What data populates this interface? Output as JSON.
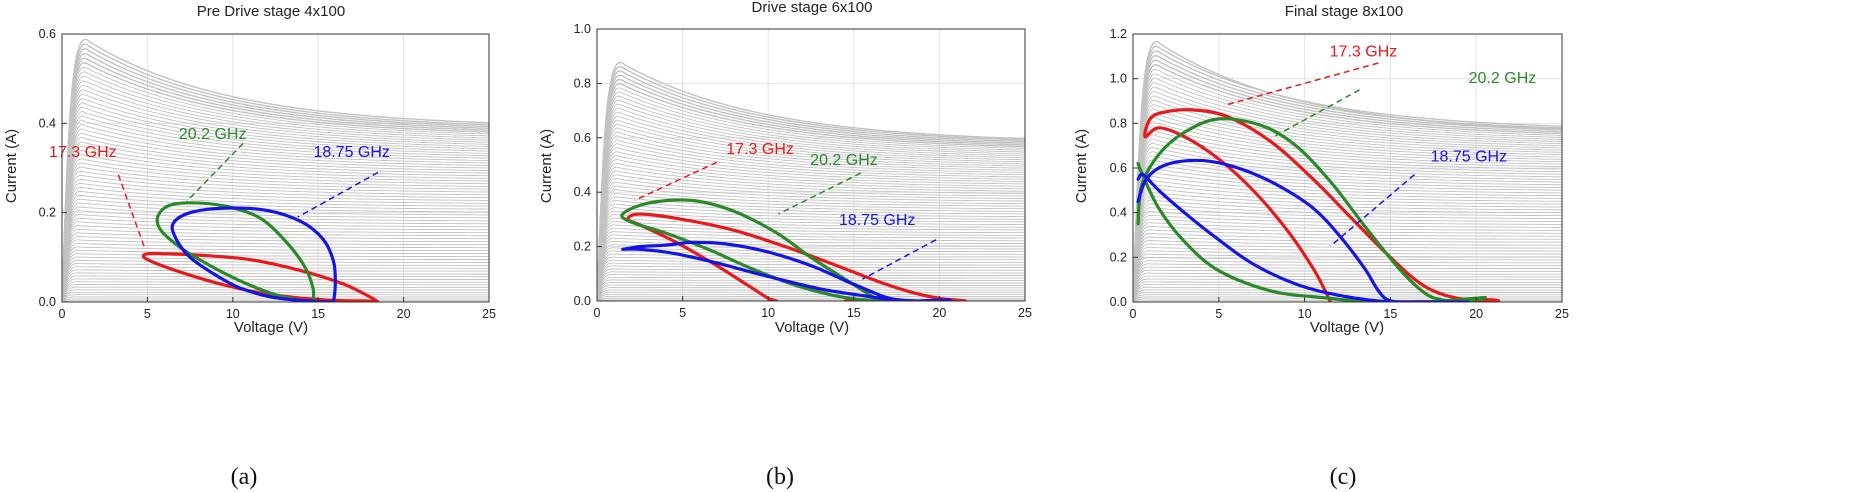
{
  "colors": {
    "grid": "#e3e3e3",
    "family": "#c2c2c2",
    "red": "#e8191c",
    "green": "#2a8a2a",
    "blue": "#1414e6",
    "axis": "#333333"
  },
  "chart_data": [
    {
      "type": "line",
      "title": "Pre Drive stage 4x100",
      "xlabel": "Voltage (V)",
      "ylabel": "Current (A)",
      "xlim": [
        0,
        25
      ],
      "ylim": [
        0,
        0.6
      ],
      "xticks": [
        "0",
        "5",
        "10",
        "15",
        "20",
        "25"
      ],
      "yticks": [
        "0.0",
        "0.2",
        "0.4",
        "0.6"
      ],
      "caption": "(a)",
      "family": {
        "peak_current": 0.59,
        "peak_voltage": 1.3,
        "end_current": 0.39,
        "curve_count": 70
      },
      "series": [
        {
          "name": "17.3 GHz",
          "color": "red",
          "x": [
            18.5,
            18.1,
            16.5,
            14.0,
            11.0,
            8.0,
            6.0,
            5.0,
            4.8,
            5.6,
            7.5,
            9.5,
            12.0,
            14.5,
            16.5,
            17.8,
            18.4,
            18.5
          ],
          "y": [
            0.0,
            0.01,
            0.04,
            0.07,
            0.095,
            0.105,
            0.108,
            0.108,
            0.1,
            0.085,
            0.06,
            0.038,
            0.018,
            0.007,
            0.003,
            0.002,
            0.001,
            0.0
          ]
        },
        {
          "name": "20.2 GHz",
          "color": "green",
          "x": [
            14.7,
            14.7,
            14.2,
            13.0,
            11.5,
            9.5,
            7.5,
            6.2,
            5.6,
            5.8,
            7.0,
            8.5,
            10.0,
            11.5,
            12.8,
            13.8,
            14.4,
            14.7
          ],
          "y": [
            0.0,
            0.03,
            0.08,
            0.14,
            0.19,
            0.215,
            0.222,
            0.215,
            0.19,
            0.16,
            0.12,
            0.085,
            0.055,
            0.03,
            0.013,
            0.005,
            0.001,
            0.0
          ]
        },
        {
          "name": "18.75 GHz",
          "color": "blue",
          "x": [
            15.9,
            16.0,
            15.9,
            15.3,
            14.0,
            12.0,
            9.5,
            7.5,
            6.5,
            6.7,
            7.5,
            8.8,
            10.2,
            11.8,
            13.2,
            14.6,
            15.5,
            15.9
          ],
          "y": [
            0.0,
            0.04,
            0.09,
            0.14,
            0.18,
            0.205,
            0.21,
            0.2,
            0.175,
            0.14,
            0.1,
            0.065,
            0.035,
            0.015,
            0.006,
            0.002,
            0.0,
            0.0
          ]
        }
      ],
      "annotations": [
        {
          "text": "17.3 GHz",
          "color": "red",
          "x": 3.2,
          "y": 0.325,
          "from": [
            3.3,
            0.285
          ],
          "to": [
            4.8,
            0.125
          ]
        },
        {
          "text": "20.2 GHz",
          "color": "green",
          "x": 10.8,
          "y": 0.365,
          "from": [
            10.6,
            0.355
          ],
          "to": [
            7.3,
            0.225
          ]
        },
        {
          "text": "18.75 GHz",
          "color": "blue",
          "x": 19.2,
          "y": 0.325,
          "from": [
            18.5,
            0.29
          ],
          "to": [
            13.8,
            0.19
          ]
        }
      ]
    },
    {
      "type": "line",
      "title": "Drive stage 6x100",
      "xlabel": "Voltage (V)",
      "ylabel": "Current (A)",
      "xlim": [
        0,
        25
      ],
      "ylim": [
        0,
        1.0
      ],
      "xticks": [
        "0",
        "5",
        "10",
        "15",
        "20",
        "25"
      ],
      "yticks": [
        "0.0",
        "0.2",
        "0.4",
        "0.6",
        "0.8",
        "1.0"
      ],
      "caption": "(b)",
      "family": {
        "peak_current": 0.88,
        "peak_voltage": 1.3,
        "end_current": 0.58,
        "curve_count": 70
      },
      "series": [
        {
          "name": "17.3 GHz",
          "color": "red",
          "x": [
            10.5,
            10.0,
            9.0,
            7.0,
            4.5,
            2.5,
            1.8,
            2.5,
            5.0,
            8.0,
            11.0,
            14.0,
            16.5,
            18.5,
            20.0,
            21.0,
            21.5,
            20.5,
            18.5,
            16.5,
            14.5
          ],
          "y": [
            0.0,
            0.01,
            0.05,
            0.13,
            0.22,
            0.28,
            0.3,
            0.32,
            0.3,
            0.26,
            0.2,
            0.13,
            0.07,
            0.03,
            0.01,
            0.003,
            0.0,
            0.0,
            0.0,
            0.0,
            0.0
          ]
        },
        {
          "name": "20.2 GHz",
          "color": "green",
          "x": [
            16.5,
            16.0,
            14.5,
            12.5,
            10.5,
            8.0,
            5.5,
            3.0,
            1.5,
            2.0,
            4.0,
            6.5,
            9.0,
            11.5,
            13.5,
            15.0,
            16.2,
            17.0,
            18.5,
            19.5
          ],
          "y": [
            0.0,
            0.02,
            0.08,
            0.16,
            0.25,
            0.33,
            0.37,
            0.36,
            0.32,
            0.29,
            0.25,
            0.19,
            0.12,
            0.06,
            0.025,
            0.008,
            0.002,
            0.0,
            0.0,
            0.0
          ]
        },
        {
          "name": "18.75 GHz",
          "color": "blue",
          "x": [
            1.5,
            2.5,
            4.0,
            5.5,
            7.5,
            10.0,
            12.5,
            14.5,
            16.0,
            16.8,
            17.5,
            18.5,
            19.5,
            20.3,
            20.6,
            19.8,
            18.0,
            15.5,
            13.0,
            10.0,
            7.0,
            4.5,
            2.5,
            1.5
          ],
          "y": [
            0.19,
            0.2,
            0.205,
            0.215,
            0.21,
            0.18,
            0.13,
            0.075,
            0.035,
            0.015,
            0.005,
            0.0,
            0.0,
            0.002,
            0.004,
            0.003,
            0.0,
            0.02,
            0.045,
            0.09,
            0.14,
            0.175,
            0.19,
            0.19
          ]
        }
      ],
      "annotations": [
        {
          "text": "17.3 GHz",
          "color": "red",
          "x": 11.5,
          "y": 0.54,
          "from": [
            7.0,
            0.51
          ],
          "to": [
            2.2,
            0.37
          ]
        },
        {
          "text": "20.2 GHz",
          "color": "green",
          "x": 16.4,
          "y": 0.5,
          "from": [
            15.4,
            0.47
          ],
          "to": [
            10.6,
            0.32
          ]
        },
        {
          "text": "18.75 GHz",
          "color": "blue",
          "x": 18.6,
          "y": 0.28,
          "from": [
            19.8,
            0.225
          ],
          "to": [
            15.5,
            0.08
          ]
        }
      ]
    },
    {
      "type": "line",
      "title": "Final stage 8x100",
      "xlabel": "Voltage (V)",
      "ylabel": "Current (A)",
      "xlim": [
        0,
        25
      ],
      "ylim": [
        0,
        1.2
      ],
      "xticks": [
        "0",
        "5",
        "10",
        "15",
        "20",
        "25"
      ],
      "yticks": [
        "0.0",
        "0.2",
        "0.4",
        "0.6",
        "0.8",
        "1.0",
        "1.2"
      ],
      "caption": "(c)",
      "family": {
        "peak_current": 1.17,
        "peak_voltage": 1.3,
        "end_current": 0.75,
        "curve_count": 70
      },
      "series": [
        {
          "name": "17.3 GHz",
          "color": "red",
          "x": [
            11.5,
            11.2,
            10.5,
            9.0,
            7.0,
            5.0,
            3.0,
            1.5,
            0.7,
            1.0,
            1.8,
            3.5,
            5.5,
            8.0,
            10.5,
            12.8,
            15.0,
            17.0,
            19.0,
            21.0,
            21.2,
            20.0,
            17.5,
            15.0,
            12.8
          ],
          "y": [
            0.0,
            0.05,
            0.15,
            0.32,
            0.5,
            0.64,
            0.74,
            0.78,
            0.74,
            0.82,
            0.85,
            0.86,
            0.83,
            0.72,
            0.55,
            0.37,
            0.2,
            0.07,
            0.015,
            0.01,
            0.0,
            0.005,
            0.002,
            0.0,
            0.0
          ]
        },
        {
          "name": "20.2 GHz",
          "color": "green",
          "x": [
            0.3,
            0.5,
            1.5,
            3.0,
            5.0,
            7.5,
            9.5,
            11.5,
            13.5,
            15.5,
            17.0,
            18.0,
            19.0,
            20.0,
            20.5,
            19.0,
            17.0,
            14.0,
            11.0,
            8.0,
            5.0,
            3.0,
            1.5,
            0.5,
            0.3
          ],
          "y": [
            0.35,
            0.52,
            0.66,
            0.76,
            0.82,
            0.79,
            0.7,
            0.54,
            0.34,
            0.15,
            0.04,
            0.01,
            0.005,
            0.01,
            0.02,
            0.01,
            0.0,
            0.0,
            0.02,
            0.05,
            0.14,
            0.27,
            0.42,
            0.58,
            0.62
          ]
        },
        {
          "name": "18.75 GHz",
          "color": "blue",
          "x": [
            0.3,
            0.7,
            1.5,
            2.8,
            4.5,
            6.5,
            8.5,
            10.5,
            12.0,
            13.5,
            14.3,
            15.0,
            16.5,
            18.5,
            19.5,
            18.0,
            15.0,
            12.0,
            9.5,
            7.0,
            4.8,
            3.0,
            1.5,
            0.6,
            0.3
          ],
          "y": [
            0.45,
            0.54,
            0.6,
            0.63,
            0.63,
            0.59,
            0.52,
            0.42,
            0.3,
            0.15,
            0.05,
            0.005,
            0.0,
            0.0,
            0.0,
            0.0,
            0.0,
            0.03,
            0.08,
            0.17,
            0.29,
            0.4,
            0.5,
            0.57,
            0.55
          ]
        }
      ],
      "annotations": [
        {
          "text": "17.3 GHz",
          "color": "red",
          "x": 15.4,
          "y": 1.1,
          "from": [
            14.3,
            1.07
          ],
          "to": [
            5.3,
            0.88
          ]
        },
        {
          "text": "20.2 GHz",
          "color": "green",
          "x": 23.5,
          "y": 0.98,
          "from": [
            13.2,
            0.95
          ],
          "to": [
            8.2,
            0.74
          ]
        },
        {
          "text": "18.75 GHz",
          "color": "blue",
          "x": 21.8,
          "y": 0.63,
          "from": [
            16.4,
            0.57
          ],
          "to": [
            11.5,
            0.25
          ]
        }
      ]
    }
  ]
}
